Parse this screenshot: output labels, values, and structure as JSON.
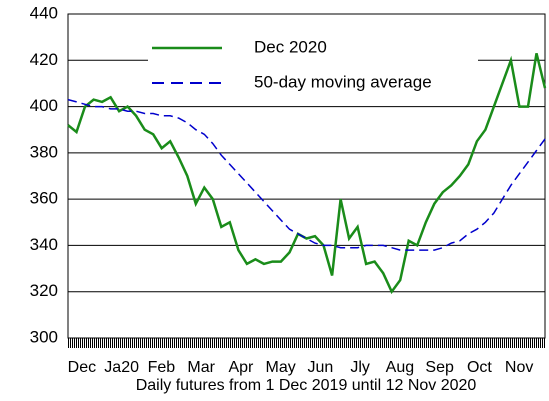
{
  "chart_data": {
    "type": "line",
    "xlabel": "Daily futures from 1 Dec 2019 until 12 Nov 2020",
    "months": [
      "Dec",
      "Ja20",
      "Feb",
      "Mar",
      "Apr",
      "May",
      "Jun",
      "Jly",
      "Aug",
      "Sep",
      "Oct",
      "Nov"
    ],
    "series": [
      {
        "name": "Dec 2020",
        "color": "#1a8c1a",
        "style": "solid",
        "values": [
          392,
          389,
          400,
          403,
          402,
          404,
          398,
          400,
          396,
          390,
          388,
          382,
          385,
          378,
          370,
          358,
          365,
          360,
          348,
          350,
          338,
          332,
          334,
          332,
          333,
          333,
          337,
          345,
          343,
          344,
          340,
          327,
          360,
          343,
          348,
          332,
          333,
          328,
          320,
          325,
          342,
          340,
          350,
          358,
          363,
          366,
          370,
          375,
          385,
          390,
          400,
          410,
          420,
          400,
          400,
          423,
          408
        ]
      },
      {
        "name": "50-day moving average",
        "color": "#0000cc",
        "style": "dashed",
        "values": [
          403,
          402,
          401,
          400,
          400,
          399,
          399,
          398,
          398,
          397,
          397,
          396,
          396,
          395,
          393,
          390,
          388,
          384,
          379,
          375,
          371,
          367,
          363,
          359,
          355,
          351,
          347,
          345,
          343,
          341,
          340,
          340,
          339,
          339,
          339,
          340,
          340,
          340,
          339,
          338,
          338,
          338,
          338,
          338,
          339,
          341,
          342,
          345,
          347,
          350,
          354,
          360,
          366,
          371,
          376,
          381,
          386
        ]
      }
    ],
    "ylim": [
      300,
      440
    ],
    "yticks": [
      300,
      320,
      340,
      360,
      380,
      400,
      420,
      440
    ],
    "grid": true
  }
}
